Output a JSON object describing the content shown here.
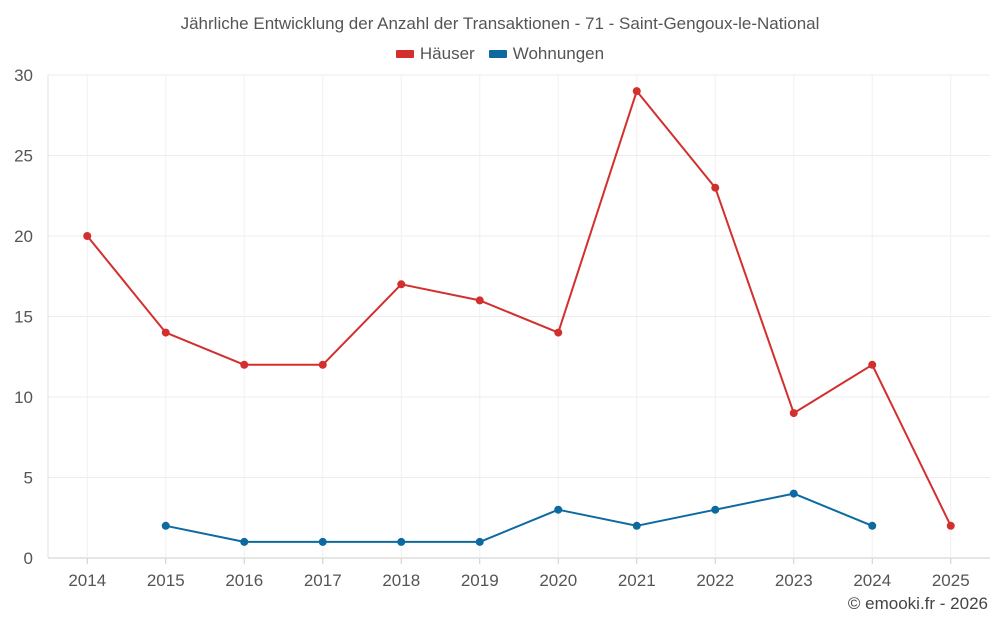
{
  "chart_data": {
    "type": "line",
    "title": "Jährliche Entwicklung der Anzahl der Transaktionen - 71 - Saint-Gengoux-le-National",
    "categories": [
      "2014",
      "2015",
      "2016",
      "2017",
      "2018",
      "2019",
      "2020",
      "2021",
      "2022",
      "2023",
      "2024",
      "2025"
    ],
    "series": [
      {
        "name": "Häuser",
        "color": "#d32f2f",
        "values": [
          20,
          14,
          12,
          12,
          17,
          16,
          14,
          29,
          23,
          9,
          12,
          2
        ]
      },
      {
        "name": "Wohnungen",
        "color": "#0d6aa0",
        "values": [
          null,
          2,
          1,
          1,
          1,
          1,
          3,
          2,
          3,
          4,
          2,
          null
        ]
      }
    ],
    "ylim": [
      0,
      30
    ],
    "yticks": [
      0,
      5,
      10,
      15,
      20,
      25,
      30
    ],
    "xlabel": "",
    "ylabel": "",
    "grid": true,
    "legend": "top-center"
  },
  "credit": "© emooki.fr - 2026"
}
